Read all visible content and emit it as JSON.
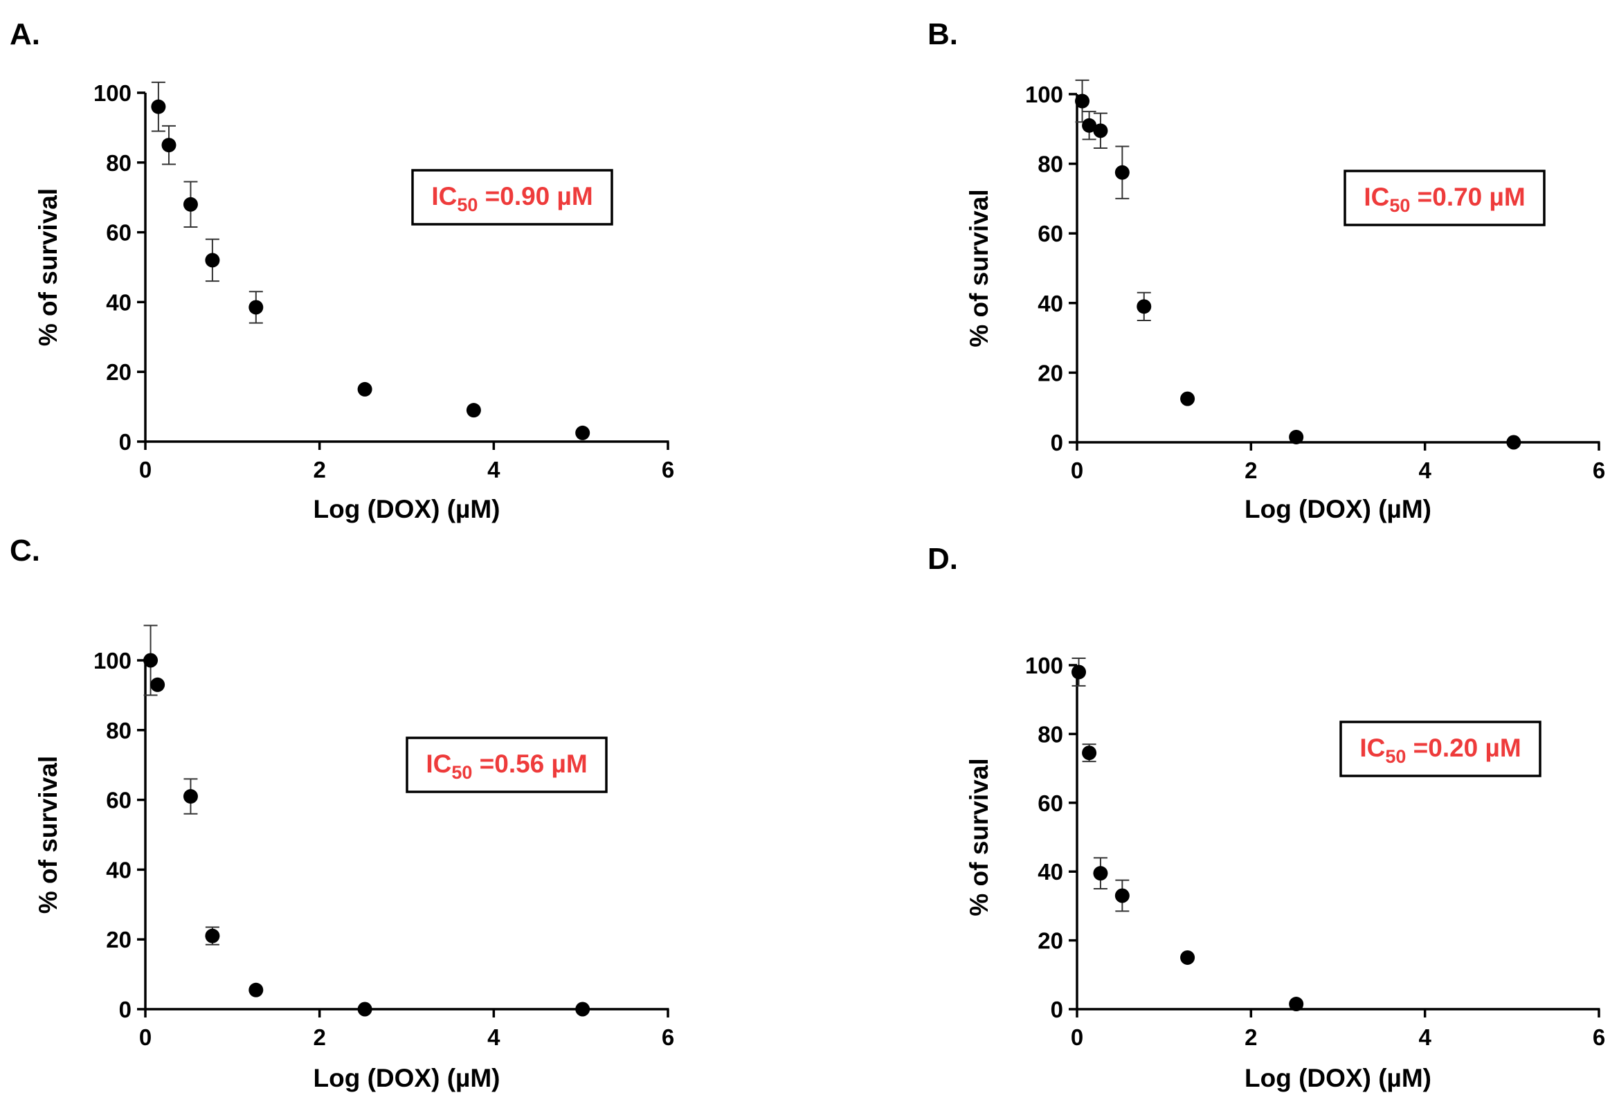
{
  "chart_data": [
    {
      "id": "A",
      "type": "scatter",
      "panel_label": "A.",
      "xlabel": "Log (DOX) (µM)",
      "ylabel": "% of survival",
      "xlim": [
        0,
        6
      ],
      "ylim": [
        0,
        100
      ],
      "xticks": [
        "0",
        "2",
        "4",
        "6"
      ],
      "yticks": [
        "0",
        "20",
        "40",
        "60",
        "80",
        "100"
      ],
      "annotation": {
        "prefix": "IC",
        "sub": "50",
        "suffix": " =0.90 µM",
        "position": "top-right"
      },
      "points": [
        {
          "x": 0.15,
          "y": 96,
          "err": 7
        },
        {
          "x": 0.27,
          "y": 85,
          "err": 5.5
        },
        {
          "x": 0.52,
          "y": 68,
          "err": 6.5
        },
        {
          "x": 0.77,
          "y": 52,
          "err": 6
        },
        {
          "x": 1.27,
          "y": 38.5,
          "err": 4.5
        },
        {
          "x": 2.52,
          "y": 15,
          "err": 0
        },
        {
          "x": 3.77,
          "y": 9,
          "err": 0
        },
        {
          "x": 5.02,
          "y": 2.5,
          "err": 0
        }
      ]
    },
    {
      "id": "B",
      "type": "scatter",
      "panel_label": "B.",
      "xlabel": "Log (DOX) (µM)",
      "ylabel": "% of survival",
      "xlim": [
        0,
        6
      ],
      "ylim": [
        0,
        100
      ],
      "xticks": [
        "0",
        "2",
        "4",
        "6"
      ],
      "yticks": [
        "0",
        "20",
        "40",
        "60",
        "80",
        "100"
      ],
      "annotation": {
        "prefix": "IC",
        "sub": "50",
        "suffix": " =0.70 µM",
        "position": "top-right"
      },
      "points": [
        {
          "x": 0.06,
          "y": 98,
          "err": 6
        },
        {
          "x": 0.14,
          "y": 91,
          "err": 4
        },
        {
          "x": 0.27,
          "y": 89.5,
          "err": 5
        },
        {
          "x": 0.52,
          "y": 77.5,
          "err": 7.5
        },
        {
          "x": 0.77,
          "y": 39,
          "err": 4
        },
        {
          "x": 1.27,
          "y": 12.5,
          "err": 0
        },
        {
          "x": 2.52,
          "y": 1.5,
          "err": 0
        },
        {
          "x": 5.02,
          "y": 0,
          "err": 0
        }
      ]
    },
    {
      "id": "C",
      "type": "scatter",
      "panel_label": "C.",
      "xlabel": "Log (DOX) (µM)",
      "ylabel": "% of survival",
      "xlim": [
        0,
        6
      ],
      "ylim": [
        0,
        100
      ],
      "xticks": [
        "0",
        "2",
        "4",
        "6"
      ],
      "yticks": [
        "0",
        "20",
        "40",
        "60",
        "80",
        "100"
      ],
      "annotation": {
        "prefix": "IC",
        "sub": "50",
        "suffix": " =0.56 µM",
        "position": "top-right"
      },
      "points": [
        {
          "x": 0.06,
          "y": 100,
          "err": 10
        },
        {
          "x": 0.14,
          "y": 93,
          "err": 0
        },
        {
          "x": 0.52,
          "y": 61,
          "err": 5
        },
        {
          "x": 0.77,
          "y": 21,
          "err": 2.5
        },
        {
          "x": 1.27,
          "y": 5.5,
          "err": 0
        },
        {
          "x": 2.52,
          "y": 0,
          "err": 0
        },
        {
          "x": 5.02,
          "y": 0,
          "err": 0
        }
      ]
    },
    {
      "id": "D",
      "type": "scatter",
      "panel_label": "D.",
      "xlabel": "Log (DOX) (µM)",
      "ylabel": "% of survival",
      "xlim": [
        0,
        6
      ],
      "ylim": [
        0,
        100
      ],
      "xticks": [
        "0",
        "2",
        "4",
        "6"
      ],
      "yticks": [
        "0",
        "20",
        "40",
        "60",
        "80",
        "100"
      ],
      "annotation": {
        "prefix": "IC",
        "sub": "50",
        "suffix": " =0.20 µM",
        "position": "top-right"
      },
      "points": [
        {
          "x": 0.02,
          "y": 98,
          "err": 4
        },
        {
          "x": 0.14,
          "y": 74.5,
          "err": 2.5
        },
        {
          "x": 0.27,
          "y": 39.5,
          "err": 4.5
        },
        {
          "x": 0.52,
          "y": 33,
          "err": 4.5
        },
        {
          "x": 1.27,
          "y": 15,
          "err": 0
        },
        {
          "x": 2.52,
          "y": 1.5,
          "err": 0
        }
      ]
    }
  ],
  "colors": {
    "marker": "#000000",
    "annotation": "#ee3b3b",
    "axis": "#000000"
  }
}
